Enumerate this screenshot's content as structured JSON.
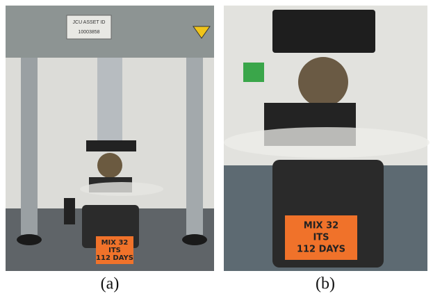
{
  "panels": [
    {
      "caption": "(a)",
      "asset_label": "JCU ASSET ID",
      "asset_id": "10003858",
      "sign": [
        "MIX 32",
        "ITS",
        "112 DAYS"
      ]
    },
    {
      "caption": "(b)",
      "sign": [
        "MIX 32",
        "ITS",
        "112 DAYS"
      ]
    }
  ]
}
